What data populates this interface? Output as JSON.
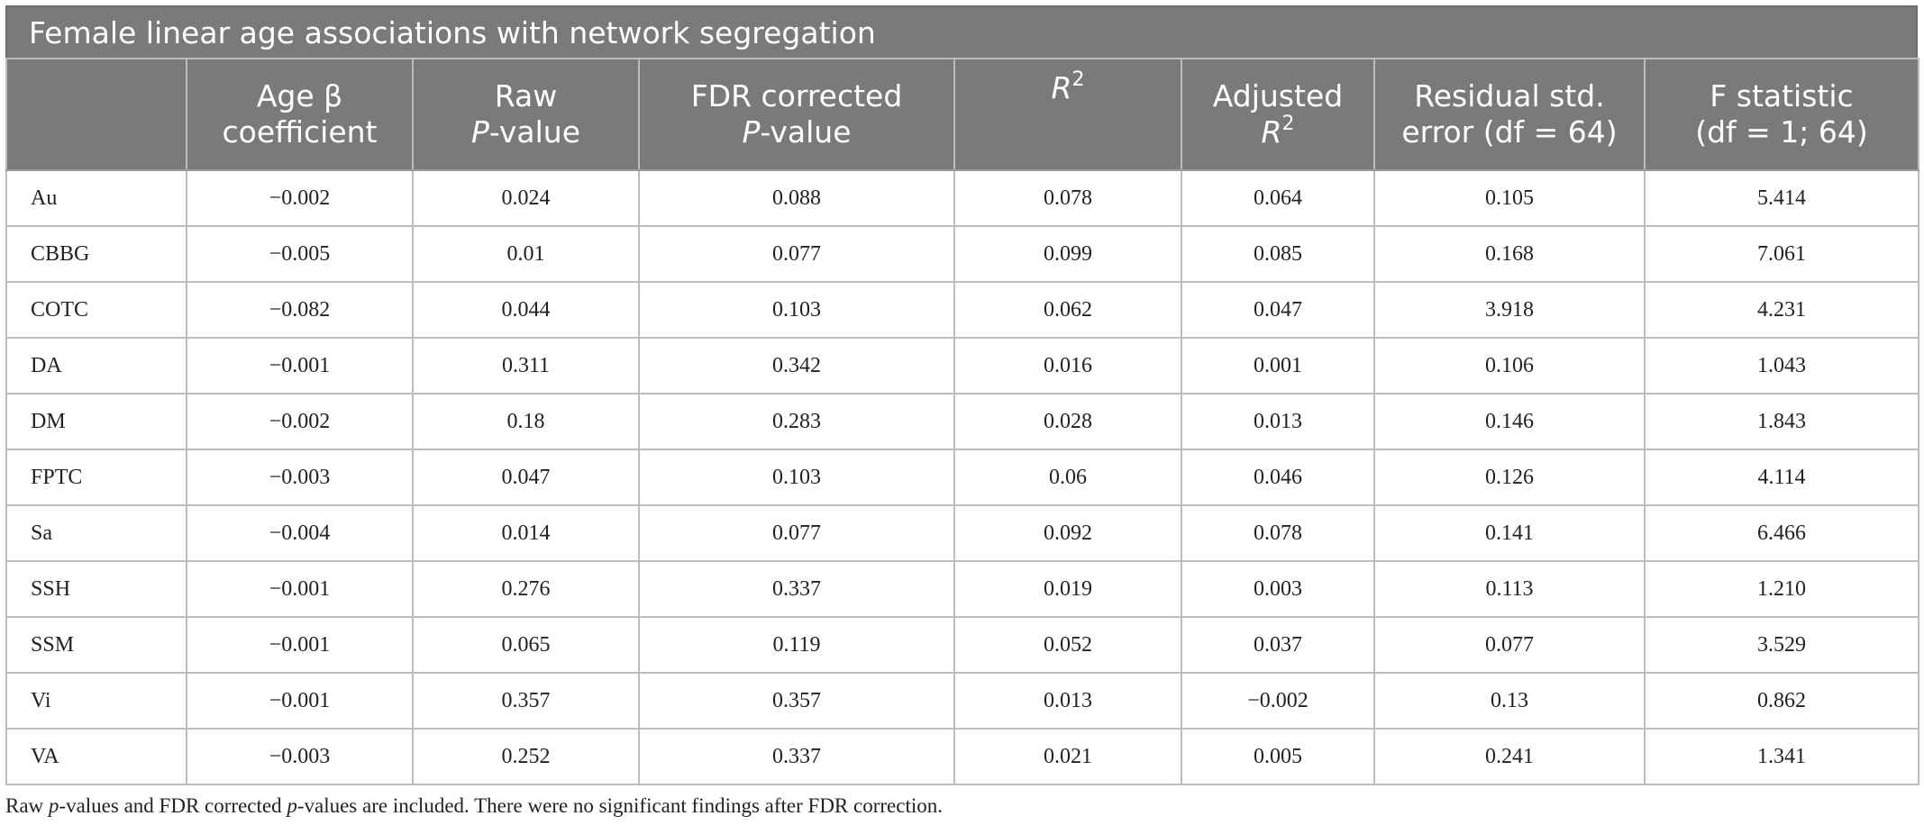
{
  "title": "Female linear age associations with network segregation",
  "headers": [
    {
      "l1": "",
      "l2": ""
    },
    {
      "l1": "Age β",
      "l2": "coefficient"
    },
    {
      "l1": "Raw",
      "l2_it": "P",
      "l2": "-value"
    },
    {
      "l1": "FDR corrected",
      "l2_it": "P",
      "l2": "-value"
    },
    {
      "l1_it": "R",
      "l1_sup": "2"
    },
    {
      "l1": "Adjusted",
      "l2_it": "R",
      "l2_sup": "2"
    },
    {
      "l1": "Residual std.",
      "l2": "error (df = 64)"
    },
    {
      "l1": "F statistic",
      "l2": "(df = 1; 64)"
    }
  ],
  "rows": [
    [
      "Au",
      "−0.002",
      "0.024",
      "0.088",
      "0.078",
      "0.064",
      "0.105",
      "5.414"
    ],
    [
      "CBBG",
      "−0.005",
      "0.01",
      "0.077",
      "0.099",
      "0.085",
      "0.168",
      "7.061"
    ],
    [
      "COTC",
      "−0.082",
      "0.044",
      "0.103",
      "0.062",
      "0.047",
      "3.918",
      "4.231"
    ],
    [
      "DA",
      "−0.001",
      "0.311",
      "0.342",
      "0.016",
      "0.001",
      "0.106",
      "1.043"
    ],
    [
      "DM",
      "−0.002",
      "0.18",
      "0.283",
      "0.028",
      "0.013",
      "0.146",
      "1.843"
    ],
    [
      "FPTC",
      "−0.003",
      "0.047",
      "0.103",
      "0.06",
      "0.046",
      "0.126",
      "4.114"
    ],
    [
      "Sa",
      "−0.004",
      "0.014",
      "0.077",
      "0.092",
      "0.078",
      "0.141",
      "6.466"
    ],
    [
      "SSH",
      "−0.001",
      "0.276",
      "0.337",
      "0.019",
      "0.003",
      "0.113",
      "1.210"
    ],
    [
      "SSM",
      "−0.001",
      "0.065",
      "0.119",
      "0.052",
      "0.037",
      "0.077",
      "3.529"
    ],
    [
      "Vi",
      "−0.001",
      "0.357",
      "0.357",
      "0.013",
      "−0.002",
      "0.13",
      "0.862"
    ],
    [
      "VA",
      "−0.003",
      "0.252",
      "0.337",
      "0.021",
      "0.005",
      "0.241",
      "1.341"
    ]
  ],
  "footnote": {
    "p1": "Raw ",
    "p2_it": "p",
    "p3": "-values and FDR corrected ",
    "p4_it": "p",
    "p5": "-values are included. There were no significant findings after FDR correction."
  }
}
